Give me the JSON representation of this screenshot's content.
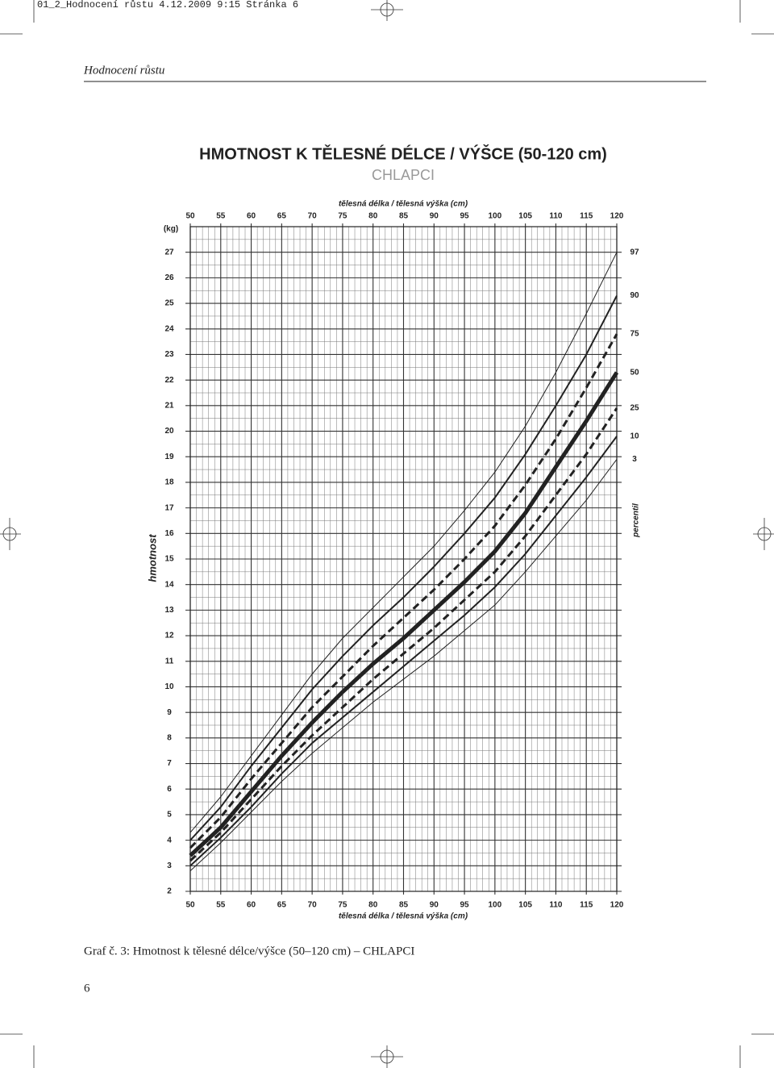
{
  "page": {
    "slug": "01_2_Hodnocení růstu   4.12.2009   9:15   Stránka 6",
    "running_header": "Hodnocení růstu",
    "caption": "Graf č. 3: Hmotnost k tělesné délce/výšce (50–120 cm) – CHLAPCI",
    "page_number": "6"
  },
  "chart_data": {
    "type": "line",
    "title": "HMOTNOST K TĚLESNÉ DÉLCE / VÝŠCE (50-120 cm)",
    "subtitle": "CHLAPCI",
    "x_label": "tělesná délka / tělesná výška (cm)",
    "y_label": "hmotnost",
    "y_unit": "(kg)",
    "legend_title": "percentil",
    "x": [
      50,
      55,
      60,
      65,
      70,
      75,
      80,
      85,
      90,
      95,
      100,
      105,
      110,
      115,
      120
    ],
    "xlim": [
      50,
      120
    ],
    "xticks": [
      50,
      55,
      60,
      65,
      70,
      75,
      80,
      85,
      90,
      95,
      100,
      105,
      110,
      115,
      120
    ],
    "ylim": [
      2,
      28
    ],
    "yticks": [
      2,
      3,
      4,
      5,
      6,
      7,
      8,
      9,
      10,
      11,
      12,
      13,
      14,
      15,
      16,
      17,
      18,
      19,
      20,
      21,
      22,
      23,
      24,
      25,
      26,
      27
    ],
    "grid": true,
    "series": [
      {
        "name": "97",
        "color": "#222222",
        "line_width": 1,
        "dashed": false,
        "values": [
          4.3,
          5.7,
          7.3,
          8.9,
          10.5,
          11.9,
          13.1,
          14.3,
          15.5,
          16.9,
          18.4,
          20.2,
          22.3,
          24.6,
          27.0
        ]
      },
      {
        "name": "90",
        "color": "#222222",
        "line_width": 2,
        "dashed": false,
        "values": [
          4.0,
          5.3,
          6.9,
          8.4,
          9.9,
          11.2,
          12.4,
          13.5,
          14.7,
          16.0,
          17.4,
          19.1,
          21.0,
          23.0,
          25.3
        ]
      },
      {
        "name": "75",
        "color": "#222222",
        "line_width": 3,
        "dashed": true,
        "values": [
          3.7,
          4.9,
          6.4,
          7.8,
          9.2,
          10.4,
          11.6,
          12.7,
          13.8,
          15.0,
          16.3,
          17.9,
          19.7,
          21.7,
          23.8
        ]
      },
      {
        "name": "50",
        "color": "#222222",
        "line_width": 5,
        "dashed": false,
        "values": [
          3.4,
          4.5,
          5.9,
          7.3,
          8.6,
          9.8,
          10.9,
          11.9,
          13.0,
          14.1,
          15.3,
          16.8,
          18.6,
          20.4,
          22.3
        ]
      },
      {
        "name": "25",
        "color": "#222222",
        "line_width": 3,
        "dashed": true,
        "values": [
          3.2,
          4.3,
          5.6,
          6.9,
          8.1,
          9.2,
          10.3,
          11.3,
          12.3,
          13.4,
          14.5,
          15.9,
          17.5,
          19.1,
          20.9
        ]
      },
      {
        "name": "10",
        "color": "#222222",
        "line_width": 2,
        "dashed": false,
        "values": [
          3.0,
          4.1,
          5.3,
          6.6,
          7.8,
          8.8,
          9.8,
          10.8,
          11.8,
          12.8,
          13.9,
          15.2,
          16.7,
          18.2,
          19.8
        ]
      },
      {
        "name": "3",
        "color": "#222222",
        "line_width": 1,
        "dashed": false,
        "values": [
          2.8,
          3.9,
          5.1,
          6.3,
          7.4,
          8.4,
          9.4,
          10.3,
          11.2,
          12.2,
          13.2,
          14.5,
          15.9,
          17.3,
          18.9
        ]
      }
    ]
  }
}
